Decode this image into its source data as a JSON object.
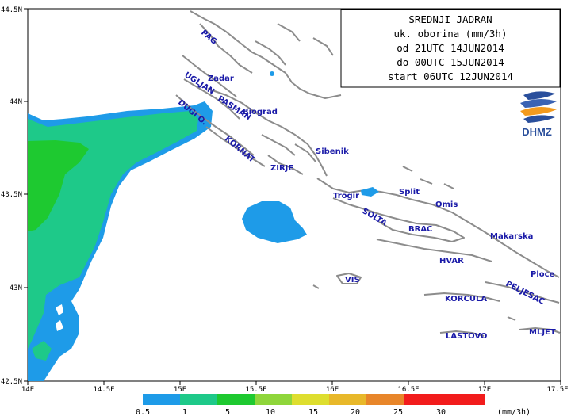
{
  "title_box": {
    "lines": [
      "SREDNJI JADRAN",
      "uk. oborina (mm/3h)",
      "od 21UTC 14JUN2014",
      "do 00UTC 15JUN2014",
      "start 06UTC 12JUN2014"
    ]
  },
  "logo": {
    "text": "DHMZ",
    "icon": "dhmz-logo-icon",
    "color": "#2a4f9c",
    "accent": "#f29a1e"
  },
  "axes": {
    "x_ticks": [
      "14E",
      "14.5E",
      "15E",
      "15.5E",
      "16E",
      "16.5E",
      "17E",
      "17.5E"
    ],
    "y_ticks": [
      "44.5N",
      "44N",
      "43.5N",
      "43N",
      "42.5N"
    ]
  },
  "places": [
    {
      "name": "PAG"
    },
    {
      "name": "Zadar"
    },
    {
      "name": "UGLJAN"
    },
    {
      "name": "PASMAN"
    },
    {
      "name": "Biograd"
    },
    {
      "name": "DUGI O."
    },
    {
      "name": "KORNAT"
    },
    {
      "name": "Sibenik"
    },
    {
      "name": "ZIRJE"
    },
    {
      "name": "Trogir"
    },
    {
      "name": "Split"
    },
    {
      "name": "Omis"
    },
    {
      "name": "SOLTA"
    },
    {
      "name": "BRAC"
    },
    {
      "name": "Makarska"
    },
    {
      "name": "HVAR"
    },
    {
      "name": "VIS"
    },
    {
      "name": "KORCULA"
    },
    {
      "name": "Ploce"
    },
    {
      "name": "PELJESAC"
    },
    {
      "name": "LASTOVO"
    },
    {
      "name": "MLJET"
    }
  ],
  "legend": {
    "values": [
      "0.5",
      "1",
      "5",
      "10",
      "15",
      "20",
      "25",
      "30"
    ],
    "unit": "(mm/3h)",
    "colors": [
      "#1e9be8",
      "#1ec989",
      "#1ec930",
      "#8fd63b",
      "#dede2f",
      "#e8b82a",
      "#e8862a",
      "#f21c1c"
    ]
  },
  "colors": {
    "coast": "#8c8c8c"
  }
}
